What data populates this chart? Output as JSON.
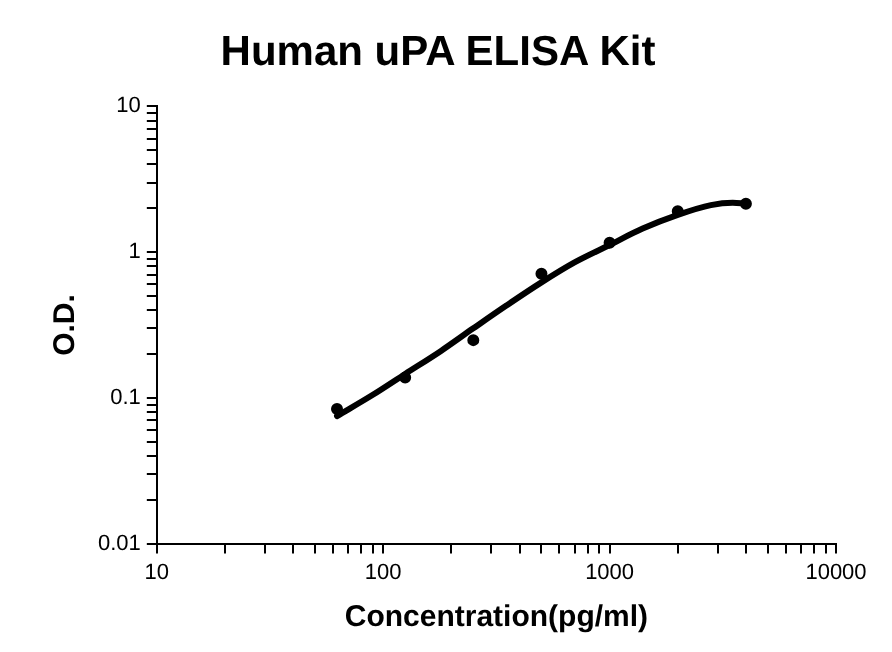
{
  "chart_data": {
    "type": "scatter",
    "title": "Human uPA ELISA Kit",
    "xlabel": "Concentration(pg/ml)",
    "ylabel": "O.D.",
    "log": "xy",
    "grid": false,
    "legend": false,
    "xlim": [
      10,
      10000
    ],
    "ylim": [
      0.01,
      10
    ],
    "xticks": [
      10,
      {
        "value": 20,
        "label": null
      },
      {
        "value": 30,
        "label": null
      },
      {
        "value": 40,
        "label": null
      },
      {
        "value": 50,
        "label": null
      },
      {
        "value": 60,
        "label": null
      },
      {
        "value": 70,
        "label": null
      },
      {
        "value": 80,
        "label": null
      },
      {
        "value": 90,
        "label": null
      },
      100,
      {
        "value": 200,
        "label": null
      },
      {
        "value": 300,
        "label": null
      },
      {
        "value": 400,
        "label": null
      },
      {
        "value": 500,
        "label": null
      },
      {
        "value": 600,
        "label": null
      },
      {
        "value": 700,
        "label": null
      },
      {
        "value": 800,
        "label": null
      },
      {
        "value": 900,
        "label": null
      },
      1000,
      {
        "value": 2000,
        "label": null
      },
      {
        "value": 3000,
        "label": null
      },
      {
        "value": 4000,
        "label": null
      },
      {
        "value": 5000,
        "label": null
      },
      {
        "value": 6000,
        "label": null
      },
      {
        "value": 7000,
        "label": null
      },
      {
        "value": 8000,
        "label": null
      },
      {
        "value": 9000,
        "label": null
      },
      10000
    ],
    "yticks": [
      0.01,
      {
        "value": 0.02,
        "label": null
      },
      {
        "value": 0.03,
        "label": null
      },
      {
        "value": 0.04,
        "label": null
      },
      {
        "value": 0.05,
        "label": null
      },
      {
        "value": 0.06,
        "label": null
      },
      {
        "value": 0.07,
        "label": null
      },
      {
        "value": 0.08,
        "label": null
      },
      {
        "value": 0.09,
        "label": null
      },
      0.1,
      {
        "value": 0.2,
        "label": null
      },
      {
        "value": 0.3,
        "label": null
      },
      {
        "value": 0.4,
        "label": null
      },
      {
        "value": 0.5,
        "label": null
      },
      {
        "value": 0.6,
        "label": null
      },
      {
        "value": 0.7,
        "label": null
      },
      {
        "value": 0.8,
        "label": null
      },
      {
        "value": 0.9,
        "label": null
      },
      1,
      {
        "value": 2,
        "label": null
      },
      {
        "value": 3,
        "label": null
      },
      {
        "value": 4,
        "label": null
      },
      {
        "value": 5,
        "label": null
      },
      {
        "value": 6,
        "label": null
      },
      {
        "value": 7,
        "label": null
      },
      {
        "value": 8,
        "label": null
      },
      {
        "value": 9,
        "label": null
      },
      10
    ],
    "series": [
      {
        "type": "scatter",
        "color": "#000000",
        "marker": "circle",
        "x": [
          62.5,
          125,
          250,
          500,
          1000,
          2000,
          4000
        ],
        "values": [
          0.084,
          0.138,
          0.249,
          0.71,
          1.16,
          1.91,
          2.15
        ]
      },
      {
        "type": "line",
        "color": "#000000",
        "marker": "none",
        "line_style": "solid",
        "x": [
          62.5,
          90,
          125,
          180,
          250,
          350,
          500,
          700,
          1000,
          1400,
          2000,
          2800,
          3500,
          4000
        ],
        "values": [
          0.075,
          0.105,
          0.146,
          0.21,
          0.3,
          0.43,
          0.62,
          0.85,
          1.12,
          1.45,
          1.8,
          2.1,
          2.18,
          2.15
        ]
      }
    ]
  }
}
